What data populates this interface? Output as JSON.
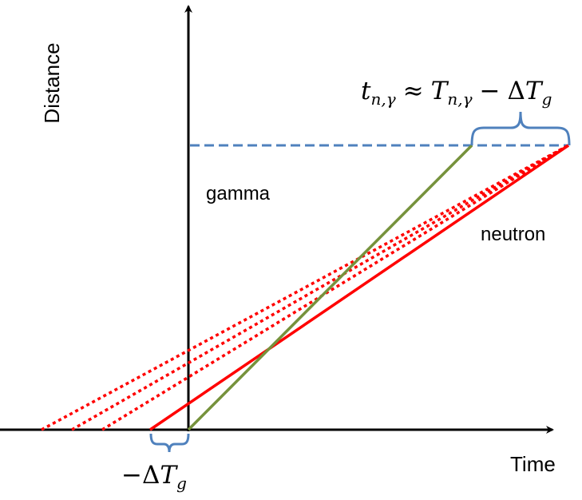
{
  "axes": {
    "x_label": "Time",
    "y_label": "Distance"
  },
  "labels": {
    "gamma": "gamma",
    "neutron": "neutron"
  },
  "formula_top": {
    "t": "t",
    "t_sub": "n,γ",
    "approx": "≈",
    "T": "T",
    "T_sub": "n,γ",
    "minus": "−",
    "delta": "Δ",
    "T2": "T",
    "T2_sub": "g"
  },
  "formula_bottom": {
    "minus": "−",
    "delta": "Δ",
    "T": "T",
    "T_sub": "g"
  },
  "colors": {
    "axis": "#000000",
    "gamma_line": "#76923c",
    "neutron_line": "#ff0000",
    "dashed_line": "#4f81bd",
    "brace": "#4f81bd"
  }
}
